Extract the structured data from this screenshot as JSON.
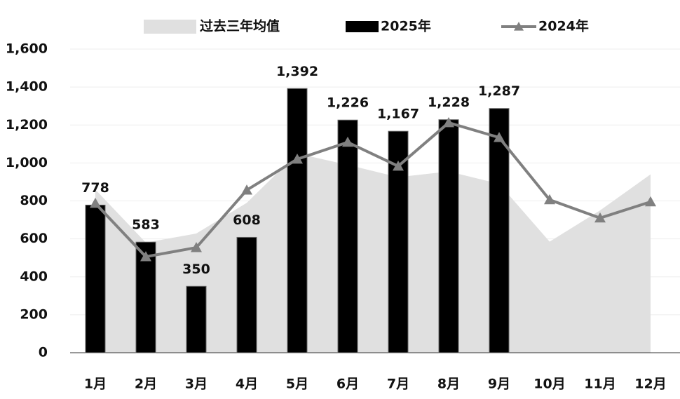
{
  "chart_data": {
    "type": "combo",
    "categories": [
      "1月",
      "2月",
      "3月",
      "4月",
      "5月",
      "6月",
      "7月",
      "8月",
      "9月",
      "10月",
      "11月",
      "12月"
    ],
    "ylim": [
      0,
      1600
    ],
    "yticks": [
      0,
      200,
      400,
      600,
      800,
      {
        "value": 1000,
        "label": "1,000"
      },
      {
        "value": 1200,
        "label": "1,200"
      },
      {
        "value": 1400,
        "label": "1,400"
      },
      {
        "value": 1600,
        "label": "1,600"
      }
    ],
    "grid": true,
    "series": [
      {
        "name": "过去三年均值",
        "type": "area",
        "color": "#e0e0e0",
        "values": [
          860,
          580,
          628,
          790,
          1050,
          990,
          925,
          955,
          890,
          585,
          750,
          940
        ]
      },
      {
        "name": "2025年",
        "type": "bar",
        "color": "#000000",
        "values": [
          778,
          583,
          350,
          608,
          1392,
          1226,
          1167,
          1228,
          1287,
          null,
          null,
          null
        ],
        "value_labels": [
          "778",
          "583",
          "350",
          "608",
          "1,392",
          "1,226",
          "1,167",
          "1,228",
          "1,287",
          null,
          null,
          null
        ]
      },
      {
        "name": "2024年",
        "type": "line",
        "color": "#808080",
        "values": [
          787,
          506,
          554,
          857,
          1020,
          1109,
          983,
          1212,
          1134,
          806,
          710,
          795
        ]
      }
    ]
  }
}
